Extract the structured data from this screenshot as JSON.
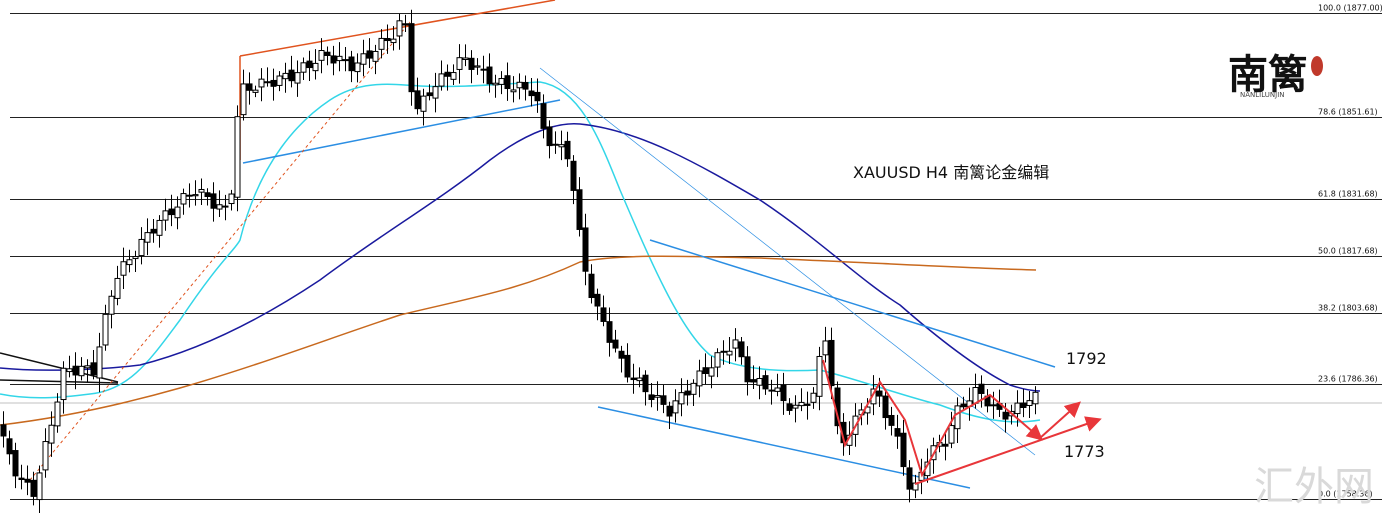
{
  "chart_data": {
    "type": "candlestick",
    "symbol": "XAUUSD",
    "title": "XAUUSD  H4  南篱论金编辑",
    "fib_levels": [
      {
        "ratio": "100.0",
        "price": 1877.0,
        "label": "100.0 (1877.00)"
      },
      {
        "ratio": "78.6",
        "price": 1851.61,
        "label": "78.6 (1851.61)"
      },
      {
        "ratio": "61.8",
        "price": 1831.68,
        "label": "61.8 (1831.68)"
      },
      {
        "ratio": "50.0",
        "price": 1817.68,
        "label": "50.0 (1817.68)"
      },
      {
        "ratio": "38.2",
        "price": 1803.68,
        "label": "38.2 (1803.68)"
      },
      {
        "ratio": "23.6",
        "price": 1786.36,
        "label": "23.6 (1786.36)"
      },
      {
        "ratio": "0.0",
        "price": 1758.36,
        "label": "0.0 (1758.36)"
      }
    ],
    "annotations": [
      {
        "text": "1792",
        "price": 1792
      },
      {
        "text": "1773",
        "price": 1773
      }
    ],
    "current_price": 1783.0,
    "colors": {
      "bull_candle": "#ffffff",
      "bear_candle": "#000000",
      "ma_fast": "#33d6e8",
      "ma_mid": "#1a1a9e",
      "ma_slow": "#c8691e",
      "trendline_blue": "#2b8ee3",
      "trendline_orange": "#e0531e",
      "arrow_red": "#e8363a",
      "grid": "#222222"
    }
  },
  "logo": {
    "text": "南篱",
    "sub": "NANLILUNJIN"
  },
  "watermark": "汇外网"
}
